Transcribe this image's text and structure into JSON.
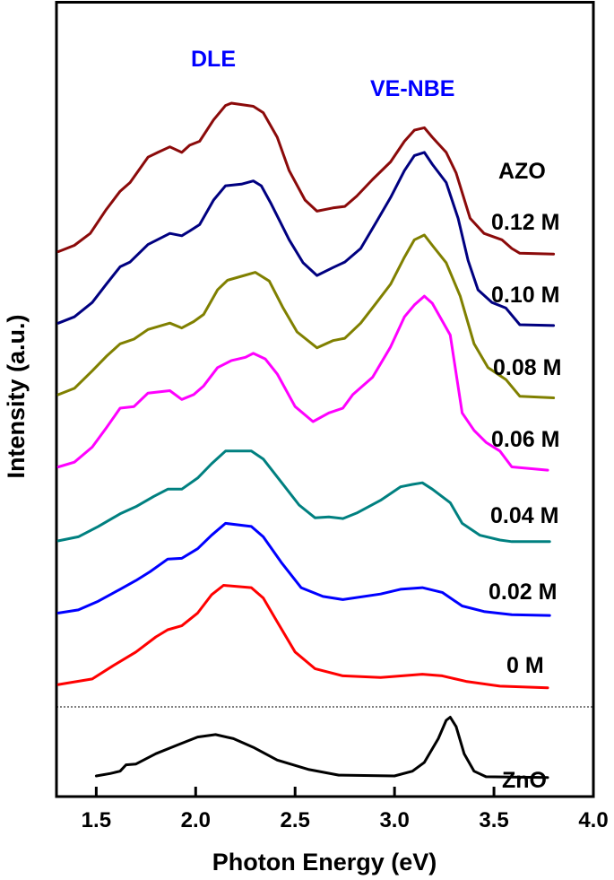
{
  "chart_data": {
    "type": "line",
    "xlabel": "Photon Energy (eV)",
    "ylabel": "Intensity (a.u.)",
    "xlim": [
      1.3,
      4.0
    ],
    "ylim": [
      0,
      100
    ],
    "xticks": [
      "1.5",
      "2.0",
      "2.5",
      "3.0",
      "3.5",
      "4.0"
    ],
    "grid": false,
    "legend": "none; series labelled at right end of curves",
    "separator_intensity": 11.3,
    "annotations": [
      {
        "text": "DLE",
        "color": "#0000ff"
      },
      {
        "text": "VE-NBE",
        "color": "#0000ff"
      },
      {
        "text": "AZO",
        "color": "#000000"
      }
    ],
    "series": [
      {
        "name": "0.12 M",
        "color": "#8b0a0a",
        "points": [
          [
            1.31,
            68.6
          ],
          [
            1.39,
            69.4
          ],
          [
            1.47,
            70.9
          ],
          [
            1.55,
            73.9
          ],
          [
            1.62,
            76.2
          ],
          [
            1.67,
            77.3
          ],
          [
            1.76,
            80.5
          ],
          [
            1.81,
            81.1
          ],
          [
            1.87,
            81.8
          ],
          [
            1.93,
            81.1
          ],
          [
            1.97,
            82.0
          ],
          [
            2.02,
            82.5
          ],
          [
            2.09,
            85.2
          ],
          [
            2.15,
            87.0
          ],
          [
            2.18,
            87.3
          ],
          [
            2.29,
            86.9
          ],
          [
            2.34,
            86.1
          ],
          [
            2.41,
            83.0
          ],
          [
            2.47,
            78.8
          ],
          [
            2.55,
            75.1
          ],
          [
            2.61,
            73.7
          ],
          [
            2.69,
            74.1
          ],
          [
            2.75,
            74.3
          ],
          [
            2.81,
            75.6
          ],
          [
            2.89,
            77.7
          ],
          [
            2.98,
            79.9
          ],
          [
            3.05,
            82.5
          ],
          [
            3.1,
            83.9
          ],
          [
            3.15,
            84.2
          ],
          [
            3.19,
            83.0
          ],
          [
            3.26,
            81.1
          ],
          [
            3.31,
            78.5
          ],
          [
            3.38,
            72.8
          ],
          [
            3.45,
            70.9
          ],
          [
            3.54,
            70.1
          ],
          [
            3.59,
            69.0
          ],
          [
            3.63,
            68.4
          ],
          [
            3.8,
            68.3
          ]
        ]
      },
      {
        "name": "0.10 M",
        "color": "#000080",
        "points": [
          [
            1.31,
            59.6
          ],
          [
            1.39,
            60.4
          ],
          [
            1.48,
            62.2
          ],
          [
            1.55,
            64.5
          ],
          [
            1.62,
            66.7
          ],
          [
            1.67,
            67.3
          ],
          [
            1.76,
            69.5
          ],
          [
            1.87,
            70.9
          ],
          [
            1.93,
            70.6
          ],
          [
            1.97,
            71.2
          ],
          [
            2.02,
            72.0
          ],
          [
            2.09,
            75.1
          ],
          [
            2.15,
            76.9
          ],
          [
            2.23,
            77.1
          ],
          [
            2.29,
            77.5
          ],
          [
            2.33,
            76.9
          ],
          [
            2.38,
            74.6
          ],
          [
            2.47,
            70.1
          ],
          [
            2.54,
            67.2
          ],
          [
            2.61,
            65.6
          ],
          [
            2.69,
            66.6
          ],
          [
            2.75,
            67.3
          ],
          [
            2.83,
            69.0
          ],
          [
            2.91,
            72.4
          ],
          [
            2.98,
            75.4
          ],
          [
            3.05,
            78.8
          ],
          [
            3.1,
            80.7
          ],
          [
            3.15,
            81.1
          ],
          [
            3.19,
            79.6
          ],
          [
            3.26,
            77.3
          ],
          [
            3.32,
            72.8
          ],
          [
            3.37,
            67.5
          ],
          [
            3.42,
            63.8
          ],
          [
            3.49,
            62.2
          ],
          [
            3.56,
            61.5
          ],
          [
            3.63,
            59.4
          ],
          [
            3.8,
            59.3
          ]
        ]
      },
      {
        "name": "0.08 M",
        "color": "#808000",
        "points": [
          [
            1.31,
            50.6
          ],
          [
            1.39,
            51.4
          ],
          [
            1.48,
            53.6
          ],
          [
            1.55,
            55.4
          ],
          [
            1.62,
            57.0
          ],
          [
            1.69,
            57.6
          ],
          [
            1.76,
            58.8
          ],
          [
            1.87,
            59.6
          ],
          [
            1.93,
            59.0
          ],
          [
            1.99,
            59.8
          ],
          [
            2.04,
            60.7
          ],
          [
            2.11,
            63.8
          ],
          [
            2.16,
            65.0
          ],
          [
            2.23,
            65.5
          ],
          [
            2.3,
            66.0
          ],
          [
            2.37,
            64.9
          ],
          [
            2.44,
            61.5
          ],
          [
            2.51,
            58.5
          ],
          [
            2.61,
            56.5
          ],
          [
            2.69,
            57.4
          ],
          [
            2.75,
            57.7
          ],
          [
            2.83,
            59.6
          ],
          [
            2.91,
            62.2
          ],
          [
            2.98,
            64.5
          ],
          [
            3.05,
            67.9
          ],
          [
            3.1,
            70.1
          ],
          [
            3.15,
            70.7
          ],
          [
            3.19,
            69.4
          ],
          [
            3.26,
            67.2
          ],
          [
            3.33,
            63.0
          ],
          [
            3.4,
            57.0
          ],
          [
            3.47,
            54.0
          ],
          [
            3.56,
            52.5
          ],
          [
            3.63,
            50.4
          ],
          [
            3.8,
            50.2
          ]
        ]
      },
      {
        "name": "0.06 M",
        "color": "#ff00ff",
        "points": [
          [
            1.31,
            41.5
          ],
          [
            1.39,
            42.1
          ],
          [
            1.48,
            44.0
          ],
          [
            1.55,
            46.4
          ],
          [
            1.62,
            48.9
          ],
          [
            1.69,
            49.1
          ],
          [
            1.76,
            50.8
          ],
          [
            1.87,
            51.1
          ],
          [
            1.93,
            50.0
          ],
          [
            1.99,
            50.6
          ],
          [
            2.04,
            51.7
          ],
          [
            2.11,
            54.0
          ],
          [
            2.18,
            54.9
          ],
          [
            2.25,
            55.3
          ],
          [
            2.29,
            55.8
          ],
          [
            2.35,
            55.1
          ],
          [
            2.41,
            53.2
          ],
          [
            2.5,
            49.1
          ],
          [
            2.59,
            47.2
          ],
          [
            2.67,
            48.3
          ],
          [
            2.74,
            48.9
          ],
          [
            2.79,
            50.6
          ],
          [
            2.89,
            52.8
          ],
          [
            2.98,
            56.6
          ],
          [
            3.05,
            60.4
          ],
          [
            3.1,
            61.9
          ],
          [
            3.15,
            63.0
          ],
          [
            3.19,
            62.1
          ],
          [
            3.28,
            58.1
          ],
          [
            3.34,
            48.3
          ],
          [
            3.4,
            46.1
          ],
          [
            3.46,
            44.6
          ],
          [
            3.53,
            43.5
          ],
          [
            3.59,
            41.5
          ],
          [
            3.77,
            41.1
          ]
        ]
      },
      {
        "name": "0.04 M",
        "color": "#008080",
        "points": [
          [
            1.31,
            32.2
          ],
          [
            1.41,
            32.7
          ],
          [
            1.51,
            34.0
          ],
          [
            1.62,
            35.6
          ],
          [
            1.7,
            36.5
          ],
          [
            1.79,
            37.8
          ],
          [
            1.86,
            38.7
          ],
          [
            1.93,
            38.7
          ],
          [
            2.01,
            40.1
          ],
          [
            2.08,
            41.9
          ],
          [
            2.15,
            43.5
          ],
          [
            2.28,
            43.5
          ],
          [
            2.34,
            42.5
          ],
          [
            2.43,
            39.6
          ],
          [
            2.52,
            36.7
          ],
          [
            2.6,
            35.1
          ],
          [
            2.67,
            35.2
          ],
          [
            2.74,
            35.0
          ],
          [
            2.81,
            35.7
          ],
          [
            2.93,
            37.3
          ],
          [
            3.03,
            39.0
          ],
          [
            3.09,
            39.3
          ],
          [
            3.14,
            39.5
          ],
          [
            3.19,
            38.7
          ],
          [
            3.28,
            37.0
          ],
          [
            3.34,
            34.4
          ],
          [
            3.43,
            32.9
          ],
          [
            3.53,
            32.3
          ],
          [
            3.59,
            32.1
          ],
          [
            3.78,
            32.1
          ]
        ]
      },
      {
        "name": "0.02 M",
        "color": "#0000ff",
        "points": [
          [
            1.31,
            23.1
          ],
          [
            1.41,
            23.5
          ],
          [
            1.51,
            24.6
          ],
          [
            1.62,
            26.1
          ],
          [
            1.7,
            27.2
          ],
          [
            1.77,
            28.3
          ],
          [
            1.86,
            29.9
          ],
          [
            1.93,
            30.0
          ],
          [
            2.01,
            31.2
          ],
          [
            2.08,
            32.9
          ],
          [
            2.15,
            34.4
          ],
          [
            2.28,
            34.0
          ],
          [
            2.34,
            32.7
          ],
          [
            2.43,
            29.5
          ],
          [
            2.53,
            26.3
          ],
          [
            2.64,
            25.2
          ],
          [
            2.74,
            24.8
          ],
          [
            2.93,
            25.5
          ],
          [
            3.03,
            26.1
          ],
          [
            3.14,
            26.3
          ],
          [
            3.24,
            25.7
          ],
          [
            3.34,
            24.0
          ],
          [
            3.45,
            23.3
          ],
          [
            3.59,
            22.9
          ],
          [
            3.78,
            22.8
          ]
        ]
      },
      {
        "name": "0 M",
        "color": "#ff0000",
        "points": [
          [
            1.31,
            14.1
          ],
          [
            1.48,
            14.8
          ],
          [
            1.58,
            16.4
          ],
          [
            1.7,
            18.2
          ],
          [
            1.8,
            20.1
          ],
          [
            1.86,
            21.0
          ],
          [
            1.93,
            21.5
          ],
          [
            2.01,
            23.1
          ],
          [
            2.08,
            25.4
          ],
          [
            2.14,
            26.6
          ],
          [
            2.28,
            26.3
          ],
          [
            2.34,
            25.0
          ],
          [
            2.41,
            22.0
          ],
          [
            2.5,
            18.2
          ],
          [
            2.6,
            16.1
          ],
          [
            2.74,
            15.2
          ],
          [
            2.93,
            15.0
          ],
          [
            3.14,
            15.4
          ],
          [
            3.24,
            15.2
          ],
          [
            3.36,
            14.5
          ],
          [
            3.53,
            13.9
          ],
          [
            3.77,
            13.7
          ]
        ]
      },
      {
        "name": "ZnO",
        "color": "#000000",
        "points": [
          [
            1.5,
            2.6
          ],
          [
            1.57,
            2.9
          ],
          [
            1.62,
            3.2
          ],
          [
            1.65,
            4.0
          ],
          [
            1.7,
            4.1
          ],
          [
            1.8,
            5.4
          ],
          [
            1.91,
            6.5
          ],
          [
            2.01,
            7.5
          ],
          [
            2.1,
            7.8
          ],
          [
            2.19,
            7.3
          ],
          [
            2.29,
            6.2
          ],
          [
            2.41,
            4.6
          ],
          [
            2.57,
            3.4
          ],
          [
            2.72,
            2.7
          ],
          [
            3.0,
            2.6
          ],
          [
            3.09,
            3.2
          ],
          [
            3.15,
            4.3
          ],
          [
            3.22,
            7.3
          ],
          [
            3.26,
            9.6
          ],
          [
            3.28,
            10.0
          ],
          [
            3.31,
            8.8
          ],
          [
            3.35,
            5.4
          ],
          [
            3.4,
            3.2
          ],
          [
            3.46,
            2.5
          ],
          [
            3.77,
            2.4
          ]
        ]
      }
    ]
  }
}
